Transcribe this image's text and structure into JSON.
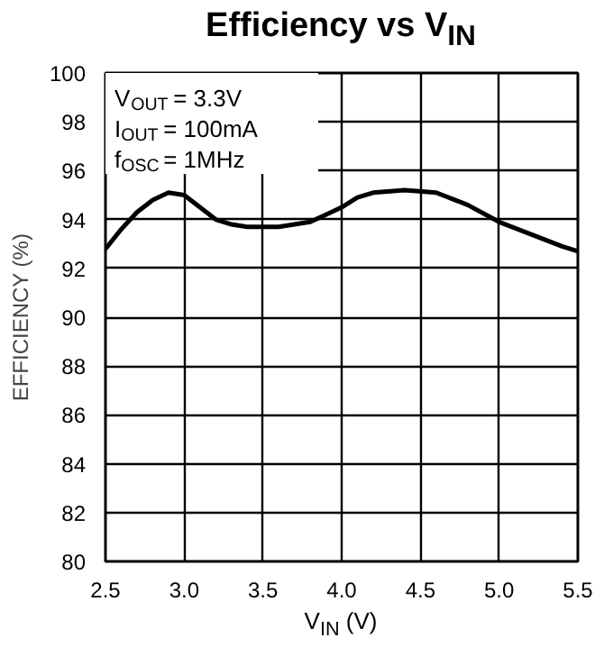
{
  "chart_data": {
    "type": "line",
    "title": "Efficiency vs V$_{IN}$",
    "xlabel": "V$_{IN}$ (V)",
    "ylabel": "EFFICIENCY (%)",
    "x": [
      2.5,
      2.6,
      2.7,
      2.8,
      2.9,
      3.0,
      3.1,
      3.2,
      3.3,
      3.4,
      3.6,
      3.8,
      3.9,
      4.0,
      4.1,
      4.2,
      4.4,
      4.6,
      4.8,
      5.0,
      5.2,
      5.4,
      5.5
    ],
    "series": [
      {
        "color": "#000000",
        "values": [
          92.8,
          93.6,
          94.3,
          94.8,
          95.1,
          95.0,
          94.5,
          94.0,
          93.8,
          93.7,
          93.7,
          93.9,
          94.2,
          94.5,
          94.9,
          95.1,
          95.2,
          95.1,
          94.6,
          93.9,
          93.4,
          92.9,
          92.7
        ]
      }
    ],
    "xlim": [
      2.5,
      5.5
    ],
    "xticks": [
      2.5,
      {
        "value": 3,
        "label": "3.0"
      },
      3.5,
      {
        "value": 4,
        "label": "4.0"
      },
      4.5,
      {
        "value": 5,
        "label": "5.0"
      },
      5.5
    ],
    "ylim": [
      80,
      100
    ],
    "yticks": [
      80,
      82,
      84,
      86,
      88,
      90,
      92,
      94,
      96,
      98,
      100
    ],
    "grid": true,
    "marker": "none",
    "line_style": "solid",
    "annotations": [
      "V$_{OUT}$ = 3.3V",
      "I$_{OUT}$ = 100mA",
      "f$_{OSC}$ = 1MHz"
    ]
  }
}
